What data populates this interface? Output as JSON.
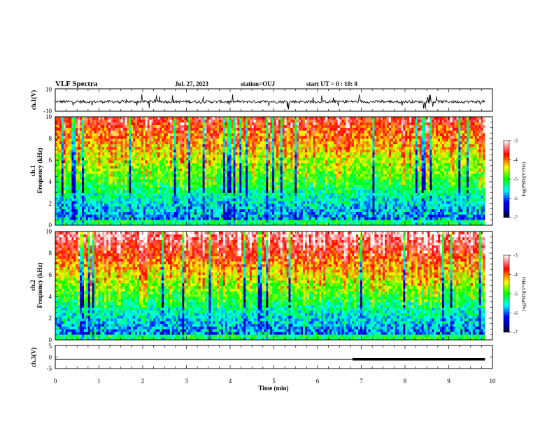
{
  "header": {
    "title": "VLF Spectra",
    "date": "Jul. 27, 2023",
    "station": "station=OUJ",
    "start": "start UT =  0 : 10: 0"
  },
  "chart_data": [
    {
      "id": "waveform-ch1",
      "type": "line",
      "ylabel": "ch.1(V)",
      "ylim": [
        -10,
        10
      ],
      "y_ticks": [
        "10",
        "-10"
      ],
      "xlim": [
        0,
        10
      ],
      "description_values": {
        "baseline_v": -1.5,
        "noise_v": 2.5,
        "spike_max_v": 10
      }
    },
    {
      "id": "spectrogram-ch1",
      "type": "heatmap",
      "ylabel": [
        "ch.1",
        "Frequency (kHz)"
      ],
      "ylim": [
        0,
        10
      ],
      "y_ticks": [
        "0",
        "2",
        "4",
        "6",
        "8",
        "10"
      ],
      "xlim": [
        0,
        10
      ],
      "colorbar": {
        "label": "log(PSD)(V²/Hz)",
        "range": [
          -7,
          -3
        ],
        "ticks": [
          "-3",
          "-4",
          "-5",
          "-6",
          "-7"
        ]
      }
    },
    {
      "id": "spectrogram-ch2",
      "type": "heatmap",
      "ylabel": [
        "ch.2",
        "Frequency (kHz)"
      ],
      "ylim": [
        0,
        10
      ],
      "y_ticks": [
        "0",
        "2",
        "4",
        "6",
        "8",
        "10"
      ],
      "xlim": [
        0,
        10
      ],
      "colorbar": {
        "label": "log(PSD)(V²/Hz)",
        "range": [
          -7,
          -3
        ],
        "ticks": [
          "-3",
          "-4",
          "-5",
          "-6",
          "-7"
        ]
      }
    },
    {
      "id": "waveform-ch3",
      "type": "line",
      "ylabel": "ch.3(V)",
      "ylim": [
        -5,
        5
      ],
      "y_ticks": [
        "5",
        "0",
        "-5"
      ],
      "x": [
        0,
        6.8,
        6.8,
        9.83
      ],
      "y": [
        -1.0,
        -1.0,
        -1.0,
        -1.0
      ],
      "segments": [
        {
          "x_start": 0,
          "x_end": 6.8,
          "level_v": -1.0,
          "weight": "thin"
        },
        {
          "x_start": 6.8,
          "x_end": 9.83,
          "level_v": -1.0,
          "weight": "thick"
        }
      ]
    }
  ],
  "x_axis": {
    "label": "Time (min)",
    "ticks": [
      "0",
      "1",
      "2",
      "3",
      "4",
      "5",
      "6",
      "7",
      "8",
      "9",
      "10"
    ],
    "range": [
      0,
      10
    ],
    "data_end_min": 9.83
  }
}
